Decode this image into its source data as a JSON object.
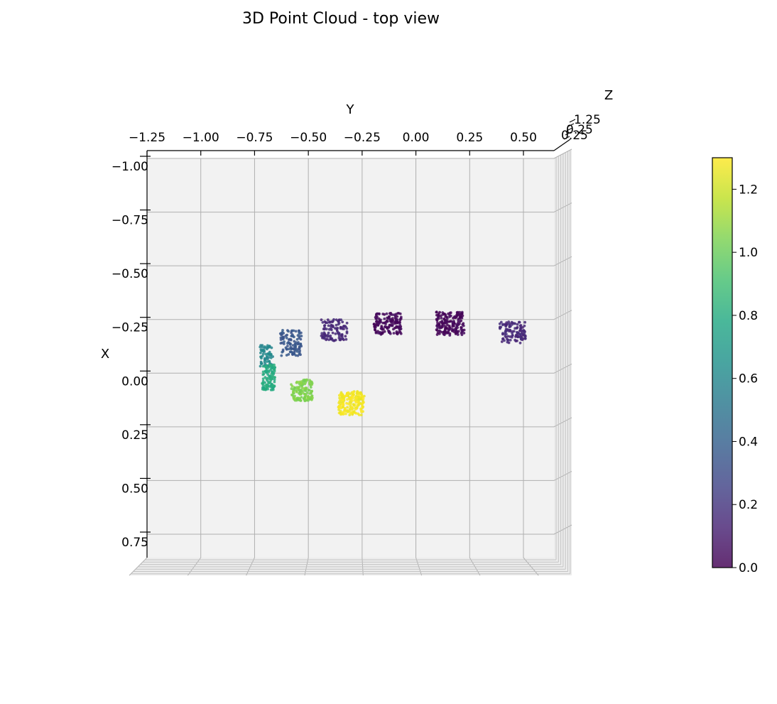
{
  "chart_data": {
    "type": "scatter",
    "title": "3D Point Cloud - top view",
    "xlabel": "Y",
    "ylabel": "X",
    "zlabel": "Z",
    "view": "top",
    "grid": true,
    "ylim_y_axis": [
      -1.25,
      0.65
    ],
    "xlim_x_axis": [
      -1.05,
      0.87
    ],
    "y_ticks": [
      "−1.25",
      "−1.00",
      "−0.75",
      "−0.50",
      "−0.25",
      "0.00",
      "0.25",
      "0.50"
    ],
    "x_ticks": [
      "−1.00",
      "−0.75",
      "−0.50",
      "−0.25",
      "0.00",
      "0.25",
      "0.50",
      "0.75"
    ],
    "z_ticks_visible": [
      "1.25",
      "0.25"
    ],
    "z_ticks_overlap_text": "0.25",
    "colorbar": {
      "min": 0.0,
      "max": 1.3,
      "ticks": [
        "0.0",
        "0.2",
        "0.4",
        "0.6",
        "0.8",
        "1.0",
        "1.2"
      ],
      "colormap": "viridis"
    },
    "clusters": [
      {
        "y_center": 0.45,
        "x_center": -0.19,
        "y_half": 0.06,
        "x_half": 0.05,
        "z": 0.15,
        "count": 120
      },
      {
        "y_center": 0.16,
        "x_center": -0.23,
        "y_half": 0.065,
        "x_half": 0.055,
        "z": 0.02,
        "count": 170
      },
      {
        "y_center": -0.13,
        "x_center": -0.23,
        "y_half": 0.065,
        "x_half": 0.05,
        "z": 0.03,
        "count": 150
      },
      {
        "y_center": -0.38,
        "x_center": -0.2,
        "y_half": 0.06,
        "x_half": 0.05,
        "z": 0.15,
        "count": 110
      },
      {
        "y_center": -0.58,
        "x_center": -0.14,
        "y_half": 0.05,
        "x_half": 0.06,
        "z": 0.35,
        "count": 110
      },
      {
        "y_center": -0.695,
        "x_center": -0.08,
        "y_half": 0.03,
        "x_half": 0.05,
        "z": 0.6,
        "count": 70
      },
      {
        "y_center": -0.685,
        "x_center": 0.02,
        "y_half": 0.03,
        "x_half": 0.06,
        "z": 0.8,
        "count": 110
      },
      {
        "y_center": -0.53,
        "x_center": 0.08,
        "y_half": 0.05,
        "x_half": 0.05,
        "z": 1.05,
        "count": 130
      },
      {
        "y_center": -0.3,
        "x_center": 0.14,
        "y_half": 0.06,
        "x_half": 0.055,
        "z": 1.28,
        "count": 180
      }
    ]
  }
}
